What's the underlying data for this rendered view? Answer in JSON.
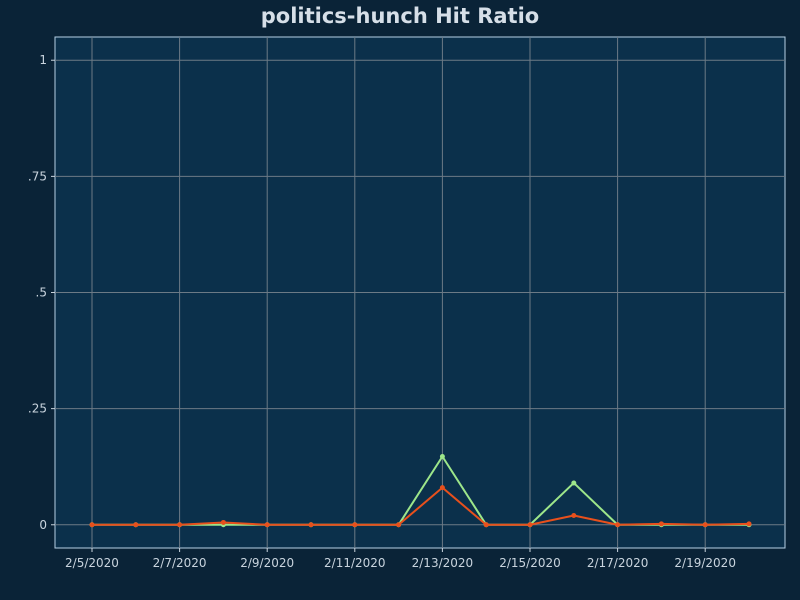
{
  "chart_data": {
    "type": "line",
    "title": "politics-hunch Hit Ratio",
    "xlabel": "",
    "ylabel": "",
    "x": [
      "2/5/2020",
      "2/6/2020",
      "2/7/2020",
      "2/8/2020",
      "2/9/2020",
      "2/10/2020",
      "2/11/2020",
      "2/12/2020",
      "2/13/2020",
      "2/14/2020",
      "2/15/2020",
      "2/16/2020",
      "2/17/2020",
      "2/18/2020",
      "2/19/2020",
      "2/20/2020"
    ],
    "x_tick_labels": [
      "2/5/2020",
      "2/7/2020",
      "2/9/2020",
      "2/11/2020",
      "2/13/2020",
      "2/15/2020",
      "2/17/2020",
      "2/19/2020"
    ],
    "y_tick_labels": [
      "1",
      ".75",
      ".5",
      ".25",
      "0"
    ],
    "y_ticks": [
      1,
      0.75,
      0.5,
      0.25,
      0
    ],
    "ylim": [
      -0.05,
      1.05
    ],
    "grid": true,
    "series": [
      {
        "color": "#9de68a",
        "values": [
          0,
          0,
          0,
          0,
          0,
          0,
          0,
          0,
          0.147,
          0,
          0,
          0.09,
          0,
          0,
          0,
          0
        ]
      },
      {
        "color": "#e8501c",
        "values": [
          0,
          0,
          0,
          0.005,
          0,
          0,
          0,
          0,
          0.08,
          0,
          0,
          0.02,
          0,
          0.002,
          0,
          0.002
        ]
      }
    ],
    "colors": {
      "background": "#0a2337",
      "plot_background": "#0b304b",
      "grid": "#6c7a86",
      "frame": "#b7d0e6"
    }
  }
}
